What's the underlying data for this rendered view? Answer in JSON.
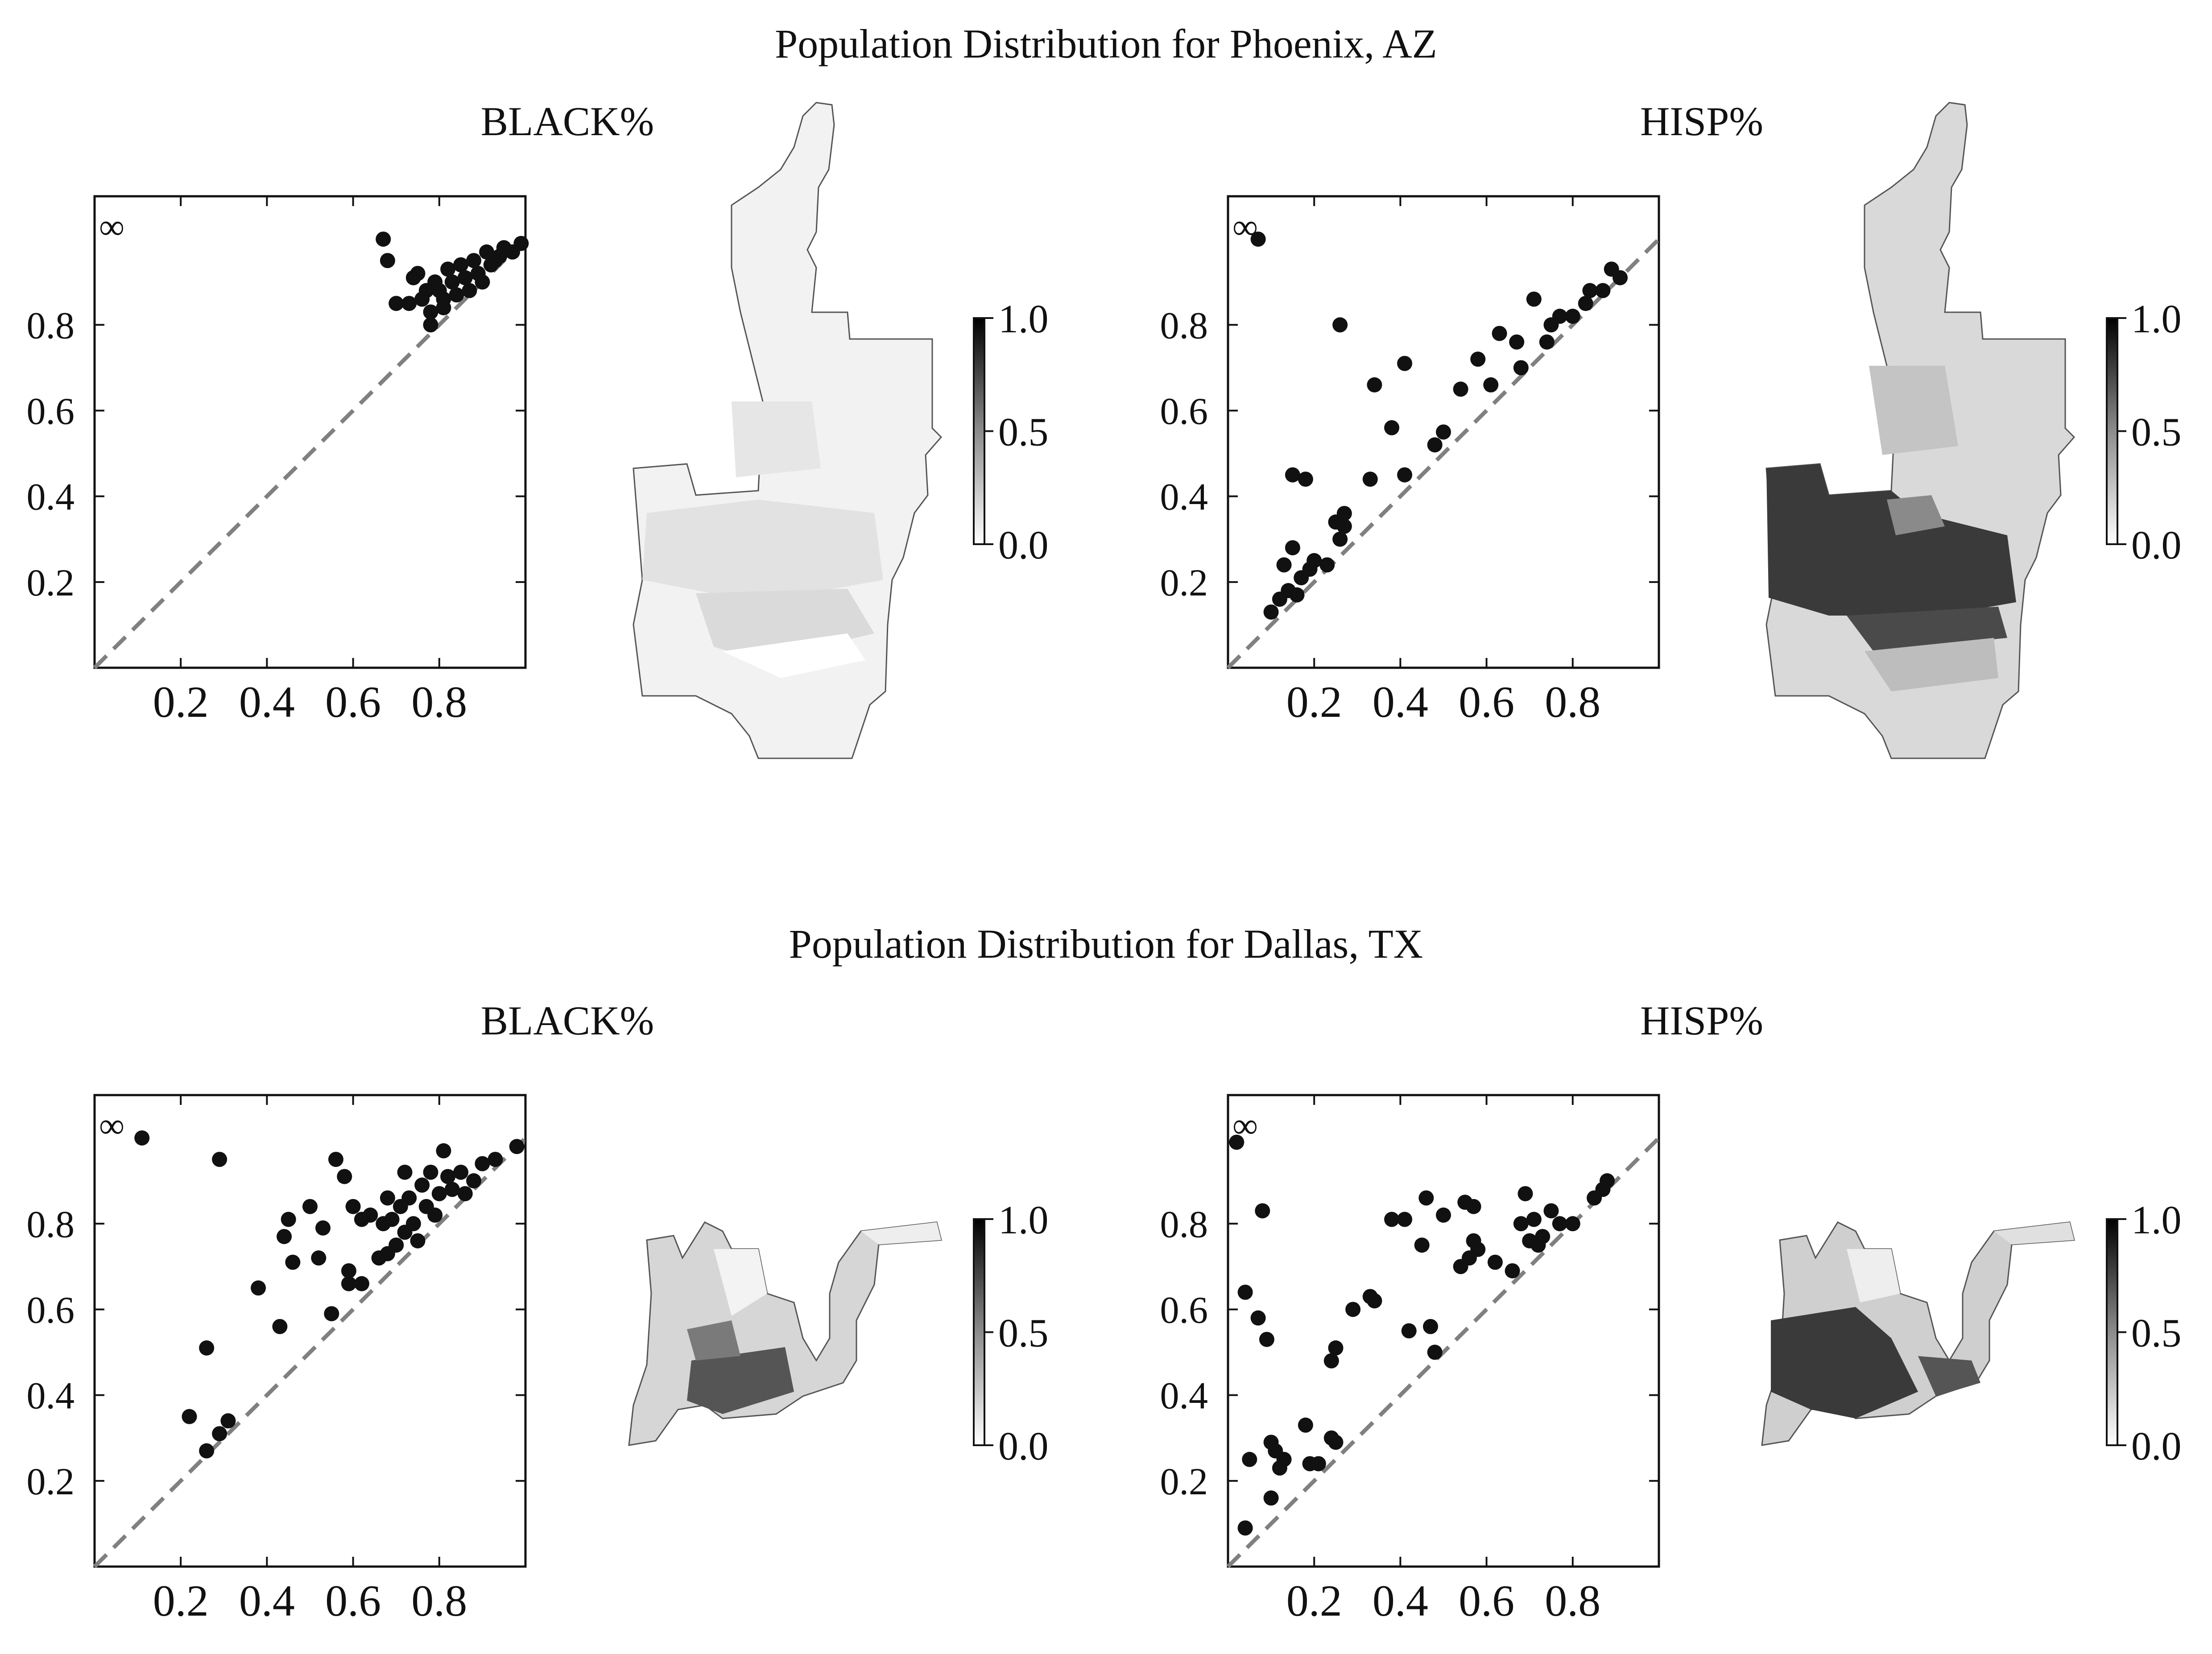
{
  "sections": [
    {
      "title": "Population Distribution for Phoenix, AZ",
      "city": "Phoenix",
      "panels": [
        {
          "title": "BLACK%",
          "variable": "BLACK"
        },
        {
          "title": "HISP%",
          "variable": "HISP"
        }
      ]
    },
    {
      "title": "Population Distribution for Dallas, TX",
      "city": "Dallas",
      "panels": [
        {
          "title": "BLACK%",
          "variable": "BLACK"
        },
        {
          "title": "HISP%",
          "variable": "HISP"
        }
      ]
    }
  ],
  "colorbar": {
    "ticks": [
      "1.0",
      "0.5",
      "0.0"
    ],
    "range": [
      0.0,
      1.0
    ],
    "colormap": "greys"
  },
  "marker_symbol": "∞",
  "colors": {
    "points": "#111111",
    "diagonal": "#808080",
    "axes": "#111111",
    "map_outline": "#555555"
  },
  "chart_data": [
    {
      "type": "scatter",
      "title": "BLACK%",
      "section": "Population Distribution for Phoenix, AZ",
      "xlabel": "",
      "ylabel": "",
      "xlim": [
        0,
        1
      ],
      "ylim": [
        0,
        1.1
      ],
      "xticks": [
        "0.2",
        "0.4",
        "0.6",
        "0.8"
      ],
      "yticks": [
        "0.2",
        "0.4",
        "0.6",
        "0.8"
      ],
      "reference_line": "y = x (dashed)",
      "points": [
        [
          0.67,
          1.0
        ],
        [
          0.68,
          0.95
        ],
        [
          0.7,
          0.85
        ],
        [
          0.73,
          0.85
        ],
        [
          0.74,
          0.91
        ],
        [
          0.75,
          0.92
        ],
        [
          0.76,
          0.86
        ],
        [
          0.77,
          0.88
        ],
        [
          0.78,
          0.8
        ],
        [
          0.78,
          0.83
        ],
        [
          0.79,
          0.9
        ],
        [
          0.8,
          0.88
        ],
        [
          0.81,
          0.86
        ],
        [
          0.81,
          0.84
        ],
        [
          0.82,
          0.93
        ],
        [
          0.83,
          0.9
        ],
        [
          0.84,
          0.87
        ],
        [
          0.85,
          0.94
        ],
        [
          0.86,
          0.91
        ],
        [
          0.87,
          0.88
        ],
        [
          0.88,
          0.95
        ],
        [
          0.89,
          0.92
        ],
        [
          0.9,
          0.9
        ],
        [
          0.91,
          0.97
        ],
        [
          0.92,
          0.94
        ],
        [
          0.93,
          0.95
        ],
        [
          0.94,
          0.96
        ],
        [
          0.95,
          0.98
        ],
        [
          0.97,
          0.97
        ],
        [
          0.99,
          0.99
        ]
      ]
    },
    {
      "type": "scatter",
      "title": "HISP%",
      "section": "Population Distribution for Phoenix, AZ",
      "xlabel": "",
      "ylabel": "",
      "xlim": [
        0,
        1
      ],
      "ylim": [
        0,
        1.1
      ],
      "xticks": [
        "0.2",
        "0.4",
        "0.6",
        "0.8"
      ],
      "yticks": [
        "0.2",
        "0.4",
        "0.6",
        "0.8"
      ],
      "reference_line": "y = x (dashed)",
      "points": [
        [
          0.07,
          1.0
        ],
        [
          0.1,
          0.13
        ],
        [
          0.12,
          0.16
        ],
        [
          0.13,
          0.24
        ],
        [
          0.14,
          0.18
        ],
        [
          0.15,
          0.28
        ],
        [
          0.15,
          0.45
        ],
        [
          0.16,
          0.17
        ],
        [
          0.17,
          0.21
        ],
        [
          0.18,
          0.44
        ],
        [
          0.19,
          0.23
        ],
        [
          0.2,
          0.25
        ],
        [
          0.23,
          0.24
        ],
        [
          0.25,
          0.34
        ],
        [
          0.26,
          0.8
        ],
        [
          0.26,
          0.3
        ],
        [
          0.27,
          0.36
        ],
        [
          0.27,
          0.33
        ],
        [
          0.33,
          0.44
        ],
        [
          0.34,
          0.66
        ],
        [
          0.38,
          0.56
        ],
        [
          0.41,
          0.71
        ],
        [
          0.41,
          0.45
        ],
        [
          0.48,
          0.52
        ],
        [
          0.5,
          0.55
        ],
        [
          0.54,
          0.65
        ],
        [
          0.58,
          0.72
        ],
        [
          0.61,
          0.66
        ],
        [
          0.63,
          0.78
        ],
        [
          0.67,
          0.76
        ],
        [
          0.68,
          0.7
        ],
        [
          0.71,
          0.86
        ],
        [
          0.74,
          0.76
        ],
        [
          0.75,
          0.8
        ],
        [
          0.77,
          0.82
        ],
        [
          0.8,
          0.82
        ],
        [
          0.83,
          0.85
        ],
        [
          0.84,
          0.88
        ],
        [
          0.87,
          0.88
        ],
        [
          0.89,
          0.93
        ],
        [
          0.91,
          0.91
        ]
      ]
    },
    {
      "type": "scatter",
      "title": "BLACK%",
      "section": "Population Distribution for Dallas, TX",
      "xlabel": "",
      "ylabel": "",
      "xlim": [
        0,
        1
      ],
      "ylim": [
        0,
        1.1
      ],
      "xticks": [
        "0.2",
        "0.4",
        "0.6",
        "0.8"
      ],
      "yticks": [
        "0.2",
        "0.4",
        "0.6",
        "0.8"
      ],
      "reference_line": "y = x (dashed)",
      "points": [
        [
          0.11,
          1.0
        ],
        [
          0.22,
          0.35
        ],
        [
          0.26,
          0.27
        ],
        [
          0.26,
          0.51
        ],
        [
          0.29,
          0.31
        ],
        [
          0.29,
          0.95
        ],
        [
          0.31,
          0.34
        ],
        [
          0.38,
          0.65
        ],
        [
          0.43,
          0.56
        ],
        [
          0.44,
          0.77
        ],
        [
          0.45,
          0.81
        ],
        [
          0.46,
          0.71
        ],
        [
          0.5,
          0.84
        ],
        [
          0.52,
          0.72
        ],
        [
          0.53,
          0.79
        ],
        [
          0.55,
          0.59
        ],
        [
          0.56,
          0.95
        ],
        [
          0.58,
          0.91
        ],
        [
          0.59,
          0.66
        ],
        [
          0.59,
          0.69
        ],
        [
          0.6,
          0.84
        ],
        [
          0.62,
          0.66
        ],
        [
          0.62,
          0.81
        ],
        [
          0.64,
          0.82
        ],
        [
          0.66,
          0.72
        ],
        [
          0.67,
          0.8
        ],
        [
          0.68,
          0.86
        ],
        [
          0.68,
          0.73
        ],
        [
          0.69,
          0.81
        ],
        [
          0.7,
          0.75
        ],
        [
          0.71,
          0.84
        ],
        [
          0.72,
          0.92
        ],
        [
          0.72,
          0.78
        ],
        [
          0.73,
          0.86
        ],
        [
          0.74,
          0.8
        ],
        [
          0.75,
          0.76
        ],
        [
          0.76,
          0.89
        ],
        [
          0.77,
          0.84
        ],
        [
          0.78,
          0.92
        ],
        [
          0.79,
          0.82
        ],
        [
          0.8,
          0.87
        ],
        [
          0.81,
          0.97
        ],
        [
          0.82,
          0.91
        ],
        [
          0.83,
          0.88
        ],
        [
          0.85,
          0.92
        ],
        [
          0.86,
          0.87
        ],
        [
          0.88,
          0.9
        ],
        [
          0.9,
          0.94
        ],
        [
          0.93,
          0.95
        ],
        [
          0.98,
          0.98
        ]
      ]
    },
    {
      "type": "scatter",
      "title": "HISP%",
      "section": "Population Distribution for Dallas, TX",
      "xlabel": "",
      "ylabel": "",
      "xlim": [
        0,
        1
      ],
      "ylim": [
        0,
        1.1
      ],
      "xticks": [
        "0.2",
        "0.4",
        "0.6",
        "0.8"
      ],
      "yticks": [
        "0.2",
        "0.4",
        "0.6",
        "0.8"
      ],
      "reference_line": "y = x (dashed)",
      "points": [
        [
          0.02,
          0.99
        ],
        [
          0.04,
          0.09
        ],
        [
          0.04,
          0.64
        ],
        [
          0.05,
          0.25
        ],
        [
          0.07,
          0.58
        ],
        [
          0.08,
          0.83
        ],
        [
          0.09,
          0.53
        ],
        [
          0.1,
          0.29
        ],
        [
          0.1,
          0.16
        ],
        [
          0.11,
          0.27
        ],
        [
          0.12,
          0.23
        ],
        [
          0.13,
          0.25
        ],
        [
          0.18,
          0.33
        ],
        [
          0.19,
          0.24
        ],
        [
          0.21,
          0.24
        ],
        [
          0.24,
          0.3
        ],
        [
          0.24,
          0.48
        ],
        [
          0.25,
          0.29
        ],
        [
          0.25,
          0.51
        ],
        [
          0.29,
          0.6
        ],
        [
          0.33,
          0.63
        ],
        [
          0.34,
          0.62
        ],
        [
          0.38,
          0.81
        ],
        [
          0.41,
          0.81
        ],
        [
          0.42,
          0.55
        ],
        [
          0.45,
          0.75
        ],
        [
          0.46,
          0.86
        ],
        [
          0.47,
          0.56
        ],
        [
          0.48,
          0.5
        ],
        [
          0.5,
          0.82
        ],
        [
          0.54,
          0.7
        ],
        [
          0.55,
          0.85
        ],
        [
          0.56,
          0.72
        ],
        [
          0.57,
          0.76
        ],
        [
          0.57,
          0.84
        ],
        [
          0.58,
          0.74
        ],
        [
          0.62,
          0.71
        ],
        [
          0.66,
          0.69
        ],
        [
          0.68,
          0.8
        ],
        [
          0.69,
          0.87
        ],
        [
          0.7,
          0.76
        ],
        [
          0.71,
          0.81
        ],
        [
          0.72,
          0.75
        ],
        [
          0.73,
          0.77
        ],
        [
          0.75,
          0.83
        ],
        [
          0.77,
          0.8
        ],
        [
          0.8,
          0.8
        ],
        [
          0.85,
          0.86
        ],
        [
          0.87,
          0.88
        ],
        [
          0.88,
          0.9
        ]
      ]
    }
  ]
}
